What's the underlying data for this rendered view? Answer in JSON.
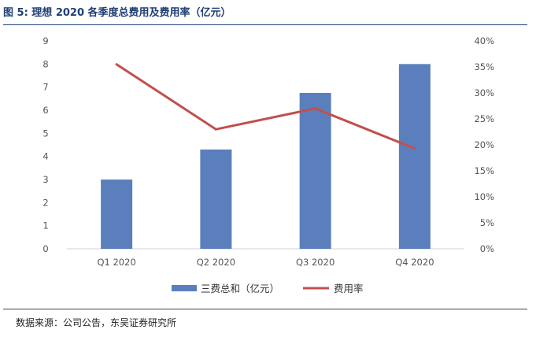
{
  "figure_title": "图 5:  理想 2020 各季度总费用及费用率（亿元）",
  "source_note": "数据来源：公司公告，东吴证券研究所",
  "chart_data": {
    "type": "bar",
    "title": "理想 2020 各季度总费用及费用率（亿元）",
    "categories": [
      "Q1 2020",
      "Q2 2020",
      "Q3 2020",
      "Q4 2020"
    ],
    "series": [
      {
        "name": "三费总和（亿元）",
        "type": "bar",
        "axis": "left",
        "values": [
          3.0,
          4.3,
          6.75,
          8.0
        ],
        "color": "#5b7fbd"
      },
      {
        "name": "费用率",
        "type": "line",
        "axis": "right",
        "values": [
          0.355,
          0.23,
          0.27,
          0.193
        ],
        "color": "#c0504d"
      }
    ],
    "y_left": {
      "min": 0,
      "max": 9,
      "step": 1,
      "tick_labels": [
        "0",
        "1",
        "2",
        "3",
        "4",
        "5",
        "6",
        "7",
        "8",
        "9"
      ]
    },
    "y_right": {
      "min": 0,
      "max": 0.4,
      "step": 0.05,
      "tick_labels": [
        "0%",
        "5%",
        "10%",
        "15%",
        "20%",
        "25%",
        "30%",
        "35%",
        "40%"
      ]
    },
    "legend": [
      "三费总和（亿元）",
      "费用率"
    ],
    "legend_position": "bottom",
    "grid": false
  }
}
